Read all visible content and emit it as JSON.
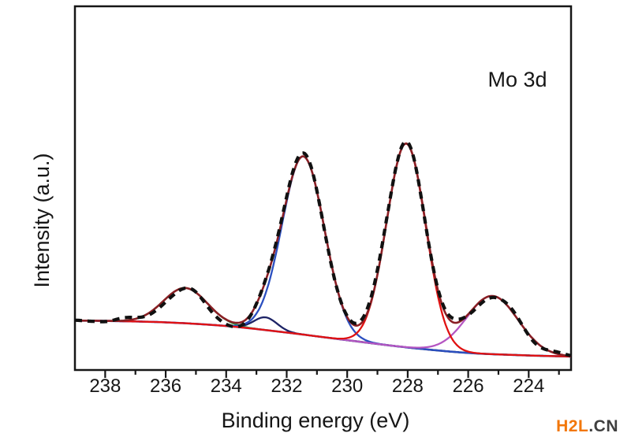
{
  "watermark": {
    "primary": "H2L",
    "suffix": ".CN",
    "primary_color": "#f2770a",
    "suffix_color": "#3f3f3f"
  },
  "chart_data": {
    "type": "line",
    "title": "",
    "annotation": "Mo 3d",
    "xlabel": "Binding energy (eV)",
    "ylabel": "Intensity (a.u.)",
    "legend": "none",
    "grid": false,
    "x_axis": {
      "range": [
        239.0,
        222.6
      ],
      "reversed": true,
      "major_ticks": [
        238,
        236,
        234,
        232,
        230,
        228,
        226,
        224
      ],
      "minor_ticks": [
        237,
        235,
        233,
        231,
        229,
        227,
        225,
        223
      ]
    },
    "y_axis": {
      "range": [
        0,
        1
      ],
      "ticks": []
    },
    "background": {
      "name": "shirley-baseline",
      "color": "#5a52b5",
      "points": [
        [
          222.6,
          0.037
        ],
        [
          224.0,
          0.04
        ],
        [
          226.0,
          0.047
        ],
        [
          228.0,
          0.062
        ],
        [
          230.0,
          0.082
        ],
        [
          232.0,
          0.103
        ],
        [
          234.0,
          0.121
        ],
        [
          236.0,
          0.131
        ],
        [
          238.0,
          0.135
        ],
        [
          239.0,
          0.136
        ]
      ]
    },
    "components": [
      {
        "name": "fitted-peak-green",
        "center": 235.35,
        "height": 0.097,
        "fwhm": 1.7,
        "color": "#2e9b47"
      },
      {
        "name": "fitted-peak-navy",
        "center": 232.7,
        "height": 0.035,
        "fwhm": 0.9,
        "color": "#1d2366"
      },
      {
        "name": "fitted-peak-blue",
        "center": 231.45,
        "height": 0.49,
        "fwhm": 1.65,
        "color": "#2b4fc0"
      },
      {
        "name": "fitted-peak-magenta",
        "center": 225.2,
        "height": 0.16,
        "fwhm": 2.0,
        "color": "#b556c2"
      },
      {
        "name": "fitted-peak-red",
        "center": 228.05,
        "height": 0.56,
        "fwhm": 1.52,
        "color": "#e01212"
      }
    ],
    "envelope": {
      "name": "fit-envelope",
      "color": "#8a1f24"
    },
    "experimental": {
      "name": "experimental-data",
      "color": "#111111",
      "style": "dashed",
      "deviations": [
        [
          222.6,
          0.001
        ],
        [
          223.1,
          0.005
        ],
        [
          223.8,
          -0.006
        ],
        [
          224.5,
          0.006
        ],
        [
          225.1,
          -0.003
        ],
        [
          225.8,
          -0.007
        ],
        [
          226.5,
          0.011
        ],
        [
          227.4,
          -0.004
        ],
        [
          228.0,
          0.005
        ],
        [
          228.5,
          0.003
        ],
        [
          229.0,
          0.013
        ],
        [
          229.9,
          0.004
        ],
        [
          230.7,
          -0.004
        ],
        [
          231.4,
          0.009
        ],
        [
          232.2,
          0.006
        ],
        [
          232.9,
          0.002
        ],
        [
          233.6,
          -0.01
        ],
        [
          234.4,
          -0.012
        ],
        [
          235.1,
          0.002
        ],
        [
          235.8,
          -0.008
        ],
        [
          236.5,
          -0.006
        ],
        [
          237.3,
          0.008
        ],
        [
          238.0,
          -0.002
        ],
        [
          239.0,
          0.001
        ]
      ]
    }
  }
}
